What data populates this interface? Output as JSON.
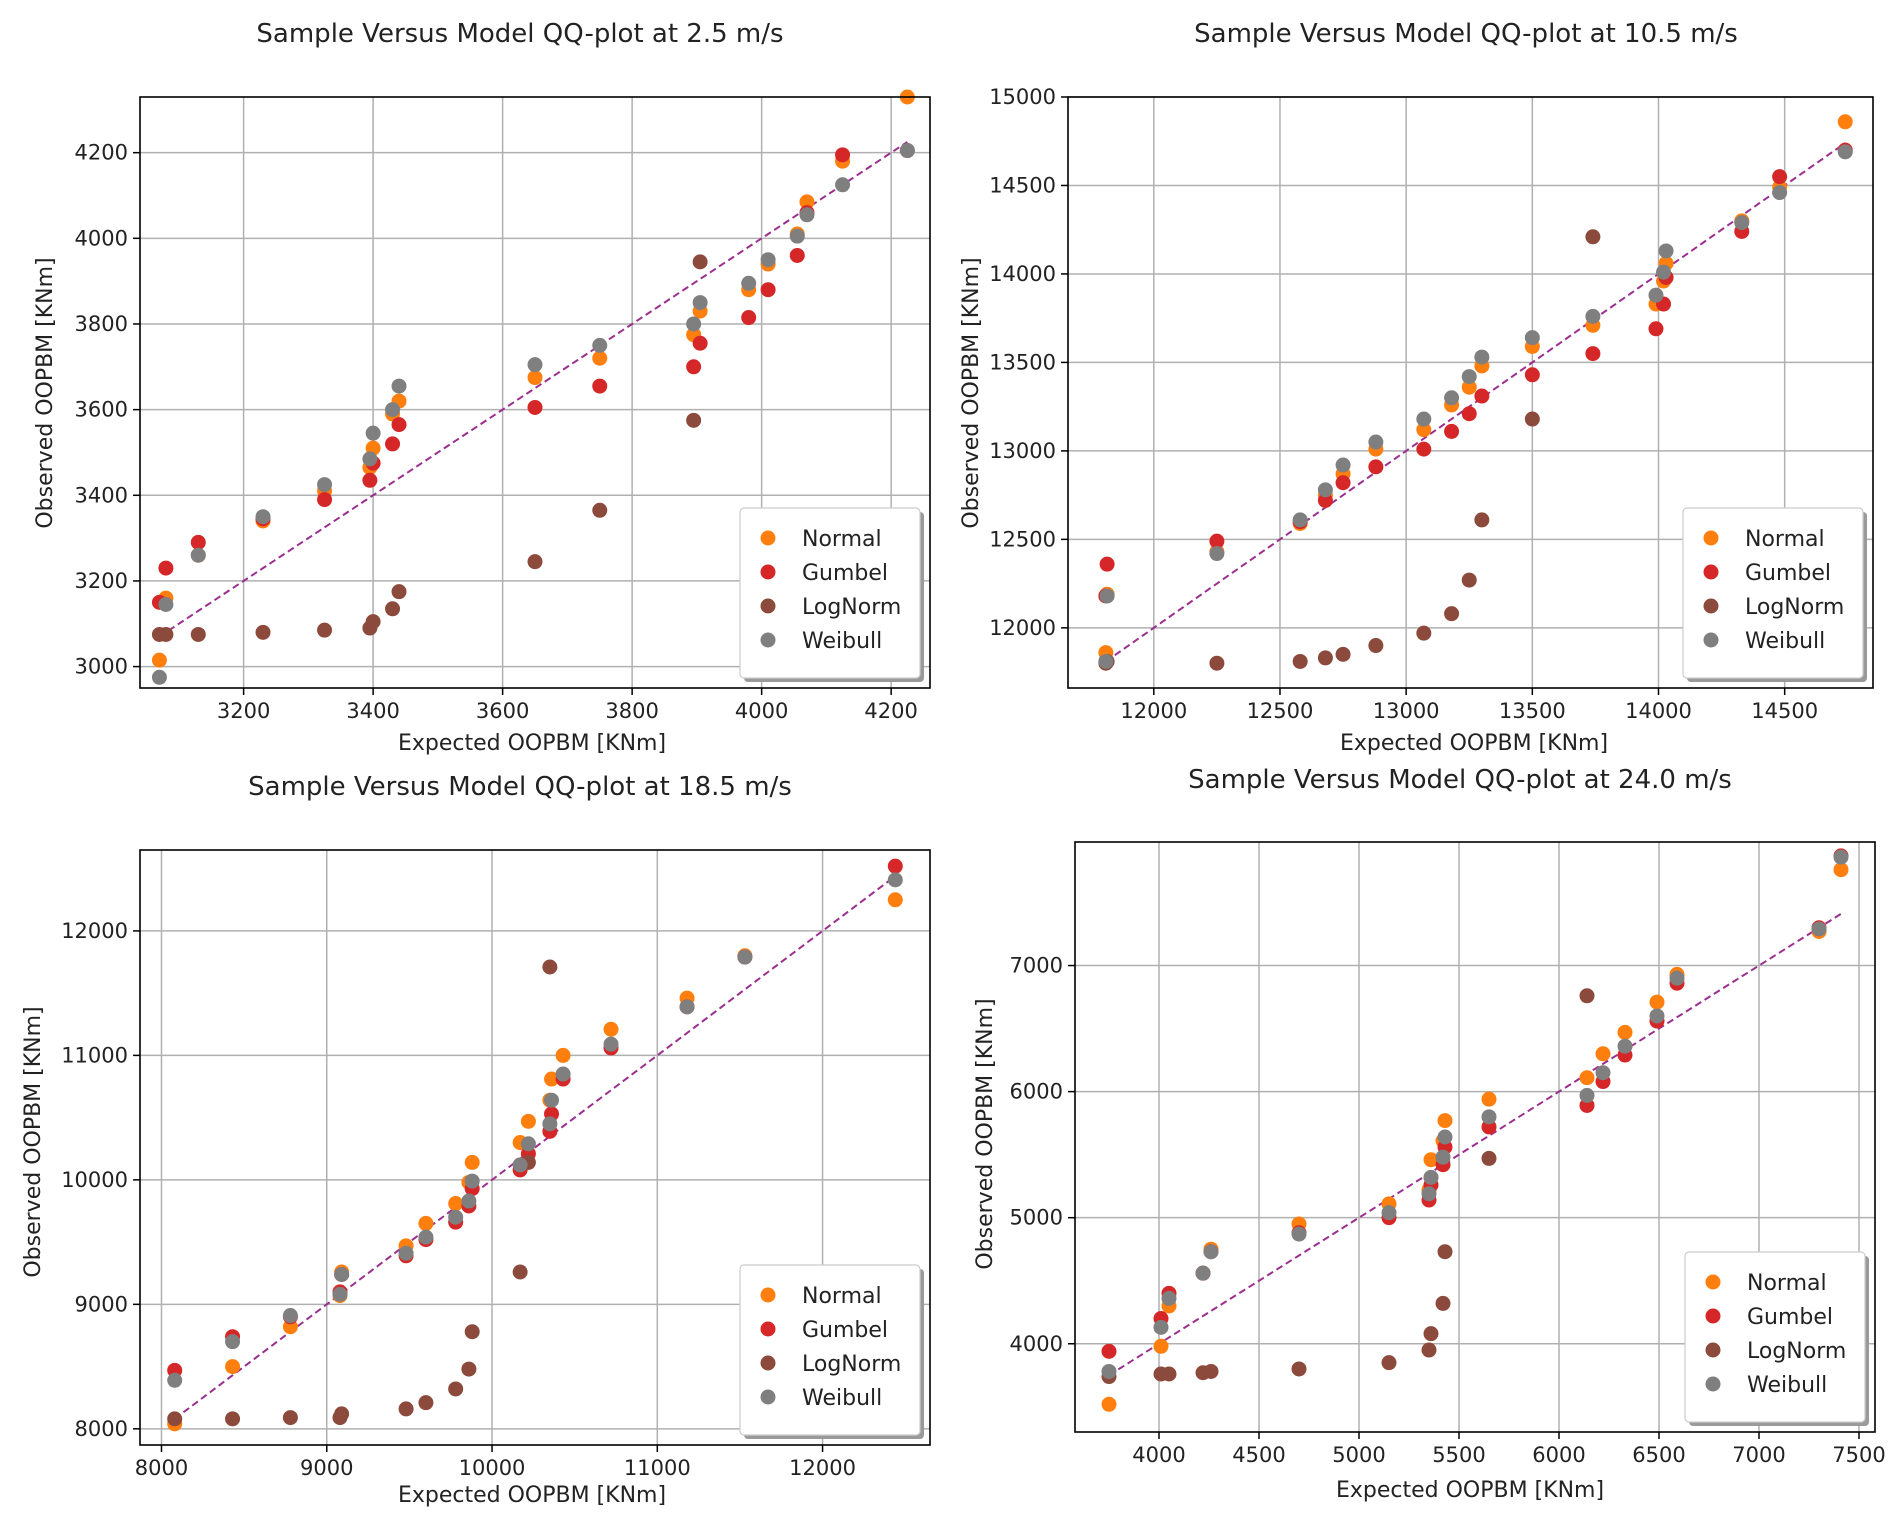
{
  "colors": {
    "Normal": "#ff7f0e",
    "Gumbel": "#d62728",
    "LogNorm": "#8c4a3c",
    "Weibull": "#7f7f7f",
    "fit_line": "#9b2f8f",
    "grid": "#b0b0b0"
  },
  "chart_data": [
    {
      "type": "scatter",
      "title": "Sample Versus Model QQ-plot at 2.5 m/s",
      "xlabel": "Expected OOPBM [KNm]",
      "ylabel": "Observed OOPBM [KNm]",
      "xlim": [
        3040,
        4260
      ],
      "ylim": [
        2950,
        4330
      ],
      "xticks": [
        3200,
        3400,
        3600,
        3800,
        4000,
        4200
      ],
      "yticks": [
        3000,
        3200,
        3400,
        3600,
        3800,
        4000,
        4200
      ],
      "legend": [
        "Normal",
        "Gumbel",
        "LogNorm",
        "Weibull"
      ],
      "legend_position": "lower-right",
      "fit_line": [
        [
          3070,
          3070
        ],
        [
          4225,
          4225
        ]
      ],
      "x": [
        3070,
        3080,
        3130,
        3230,
        3325,
        3395,
        3400,
        3430,
        3440,
        3650,
        3750,
        3895,
        3905,
        3980,
        4010,
        4055,
        4070,
        4125,
        4225
      ],
      "series": [
        {
          "name": "Normal",
          "values": [
            3015,
            3160,
            3260,
            3340,
            3410,
            3465,
            3510,
            3590,
            3620,
            3675,
            3720,
            3775,
            3830,
            3880,
            3940,
            4010,
            4085,
            4180,
            4330
          ]
        },
        {
          "name": "Gumbel",
          "values": [
            3150,
            3230,
            3290,
            3345,
            3390,
            3435,
            3475,
            3520,
            3565,
            3605,
            3655,
            3700,
            3755,
            3815,
            3880,
            3960,
            4060,
            4195,
            4205
          ]
        },
        {
          "name": "LogNorm",
          "values": [
            3075,
            3075,
            3075,
            3080,
            3085,
            3090,
            3105,
            3135,
            3175,
            3245,
            3365,
            3575,
            3945,
            null,
            null,
            null,
            null,
            null,
            null
          ]
        },
        {
          "name": "Weibull",
          "values": [
            2975,
            3145,
            3260,
            3350,
            3425,
            3485,
            3545,
            3600,
            3655,
            3705,
            3750,
            3800,
            3850,
            3895,
            3950,
            4005,
            4055,
            4125,
            4205
          ]
        }
      ]
    },
    {
      "type": "scatter",
      "title": "Sample Versus Model QQ-plot at 10.5 m/s",
      "xlabel": "Expected OOPBM [KNm]",
      "ylabel": "Observed OOPBM [KNm]",
      "xlim": [
        11660,
        14850
      ],
      "ylim": [
        11660,
        15000
      ],
      "xticks": [
        12000,
        12500,
        13000,
        13500,
        14000,
        14500
      ],
      "yticks": [
        12000,
        12500,
        13000,
        13500,
        14000,
        14500,
        15000
      ],
      "legend": [
        "Normal",
        "Gumbel",
        "LogNorm",
        "Weibull"
      ],
      "legend_position": "lower-right",
      "fit_line": [
        [
          11810,
          11810
        ],
        [
          14740,
          14740
        ]
      ],
      "x": [
        11810,
        11815,
        12250,
        12580,
        12680,
        12750,
        12880,
        13070,
        13180,
        13250,
        13300,
        13500,
        13740,
        13990,
        14020,
        14030,
        14330,
        14480,
        14740
      ],
      "series": [
        {
          "name": "Normal",
          "values": [
            11860,
            12190,
            12430,
            12590,
            12750,
            12870,
            13010,
            13120,
            13260,
            13360,
            13480,
            13590,
            13710,
            13830,
            13960,
            14060,
            14300,
            14490,
            14860
          ]
        },
        {
          "name": "Gumbel",
          "values": [
            12180,
            12360,
            12490,
            12600,
            12720,
            12820,
            12910,
            13010,
            13110,
            13210,
            13310,
            13430,
            13550,
            13690,
            13830,
            13980,
            14240,
            14550,
            14700
          ]
        },
        {
          "name": "LogNorm",
          "values": [
            11800,
            11810,
            11800,
            11810,
            11830,
            11850,
            11900,
            11970,
            12080,
            12270,
            12610,
            13180,
            14210,
            null,
            null,
            null,
            null,
            null,
            null
          ]
        },
        {
          "name": "Weibull",
          "values": [
            11810,
            12180,
            12420,
            12610,
            12780,
            12920,
            13050,
            13180,
            13300,
            13420,
            13530,
            13640,
            13760,
            13880,
            14010,
            14130,
            14290,
            14460,
            14690
          ]
        }
      ]
    },
    {
      "type": "scatter",
      "title": "Sample Versus Model QQ-plot at 18.5 m/s",
      "xlabel": "Expected OOPBM [KNm]",
      "ylabel": "Observed OOPBM [KNm]",
      "xlim": [
        7870,
        12650
      ],
      "ylim": [
        7870,
        12650
      ],
      "xticks": [
        8000,
        9000,
        10000,
        11000,
        12000
      ],
      "yticks": [
        8000,
        9000,
        10000,
        11000,
        12000
      ],
      "legend": [
        "Normal",
        "Gumbel",
        "LogNorm",
        "Weibull"
      ],
      "legend_position": "lower-right",
      "fit_line": [
        [
          8080,
          8080
        ],
        [
          12440,
          12440
        ]
      ],
      "x": [
        8080,
        8430,
        8780,
        9080,
        9090,
        9480,
        9600,
        9780,
        9860,
        9880,
        10170,
        10220,
        10350,
        10360,
        10430,
        10720,
        11180,
        11530,
        12440
      ],
      "series": [
        {
          "name": "Normal",
          "values": [
            8040,
            8500,
            8820,
            9070,
            9260,
            9470,
            9650,
            9810,
            9980,
            10140,
            10300,
            10470,
            10640,
            10810,
            11000,
            11210,
            11460,
            11800,
            12250
          ]
        },
        {
          "name": "Gumbel",
          "values": [
            8470,
            8740,
            8900,
            9100,
            9240,
            9390,
            9520,
            9660,
            9790,
            9930,
            10080,
            10210,
            10390,
            10530,
            10810,
            11060,
            11390,
            11790,
            12520
          ]
        },
        {
          "name": "LogNorm",
          "values": [
            8080,
            8080,
            8090,
            8090,
            8120,
            8160,
            8210,
            8320,
            8480,
            8780,
            9260,
            10140,
            11710,
            null,
            null,
            null,
            null,
            null,
            null
          ]
        },
        {
          "name": "Weibull",
          "values": [
            8390,
            8700,
            8910,
            9080,
            9240,
            9410,
            9540,
            9700,
            9830,
            9990,
            10120,
            10290,
            10450,
            10640,
            10850,
            11090,
            11390,
            11790,
            12410
          ]
        }
      ]
    },
    {
      "type": "scatter",
      "title": "Sample Versus Model QQ-plot at 24.0 m/s",
      "xlabel": "Expected OOPBM [KNm]",
      "ylabel": "Observed OOPBM [KNm]",
      "xlim": [
        3580,
        7580
      ],
      "ylim": [
        3300,
        7980
      ],
      "xticks": [
        4000,
        4500,
        5000,
        5500,
        6000,
        6500,
        7000,
        7500
      ],
      "yticks": [
        4000,
        5000,
        6000,
        7000
      ],
      "legend": [
        "Normal",
        "Gumbel",
        "LogNorm",
        "Weibull"
      ],
      "legend_position": "lower-right",
      "fit_line": [
        [
          3750,
          3750
        ],
        [
          7410,
          7410
        ]
      ],
      "x": [
        3750,
        4010,
        4050,
        4220,
        4260,
        4700,
        5150,
        5350,
        5360,
        5420,
        5430,
        5650,
        6140,
        6220,
        6330,
        6490,
        6590,
        7300,
        7410
      ],
      "series": [
        {
          "name": "Normal",
          "values": [
            3520,
            3980,
            4300,
            4560,
            4750,
            4950,
            5110,
            5220,
            5460,
            5610,
            5770,
            5940,
            6110,
            6300,
            6470,
            6710,
            6930,
            7270,
            7760
          ]
        },
        {
          "name": "Gumbel",
          "values": [
            3940,
            4200,
            4400,
            4560,
            4730,
            4880,
            5000,
            5140,
            5260,
            5420,
            5560,
            5720,
            5890,
            6080,
            6290,
            6560,
            6860,
            7300,
            7870
          ]
        },
        {
          "name": "LogNorm",
          "values": [
            3740,
            3760,
            3760,
            3770,
            3780,
            3800,
            3850,
            3950,
            4080,
            4320,
            4730,
            5470,
            6760,
            null,
            null,
            null,
            null,
            null,
            null
          ]
        },
        {
          "name": "Weibull",
          "values": [
            3780,
            4130,
            4360,
            4560,
            4730,
            4870,
            5040,
            5190,
            5320,
            5480,
            5640,
            5800,
            5970,
            6150,
            6360,
            6600,
            6900,
            7290,
            7860
          ]
        }
      ]
    }
  ]
}
